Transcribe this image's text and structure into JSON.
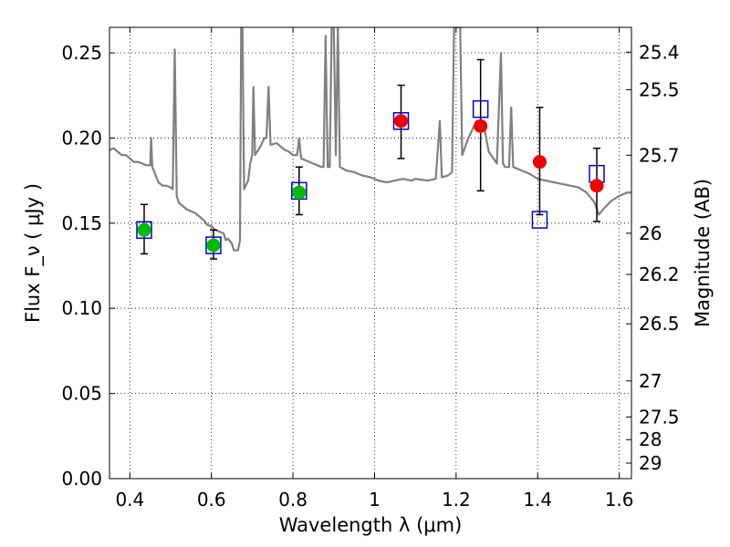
{
  "chart_data": {
    "type": "scatter",
    "title": "",
    "xlabel": "Wavelength  λ (μm)",
    "ylabel": "Flux  F_ν  ( μJy )",
    "y2label": "Magnitude (AB)",
    "xlim": [
      0.35,
      1.63
    ],
    "ylim": [
      0.0,
      0.265
    ],
    "grid": true,
    "x_ticks": [
      0.4,
      0.6,
      0.8,
      1.0,
      1.2,
      1.4,
      1.6
    ],
    "x_tick_labels": [
      "0.4",
      "0.6",
      "0.8",
      "1",
      "1.2",
      "1.4",
      "1.6"
    ],
    "y_ticks": [
      0.0,
      0.05,
      0.1,
      0.15,
      0.2,
      0.25
    ],
    "y_tick_labels": [
      "0.00",
      "0.05",
      "0.10",
      "0.15",
      "0.20",
      "0.25"
    ],
    "y2_ticks": [
      {
        "label": "25.4",
        "flux": 0.2504
      },
      {
        "label": "25.5",
        "flux": 0.2284
      },
      {
        "label": "25.7",
        "flux": 0.1899
      },
      {
        "label": "26",
        "flux": 0.1441
      },
      {
        "label": "26.2",
        "flux": 0.1199
      },
      {
        "label": "26.5",
        "flux": 0.0909
      },
      {
        "label": "27",
        "flux": 0.0574
      },
      {
        "label": "27.5",
        "flux": 0.0362
      },
      {
        "label": "28",
        "flux": 0.0229
      },
      {
        "label": "29",
        "flux": 0.0091
      }
    ],
    "colors": {
      "model": "#808080",
      "square": "#0000cc",
      "green": "#00bb00",
      "red": "#ee0000",
      "errorbar": "#000000"
    },
    "series": [
      {
        "type": "line",
        "points": [
          [
            0.35,
            0.193
          ],
          [
            0.36,
            0.194
          ],
          [
            0.37,
            0.192
          ],
          [
            0.38,
            0.19
          ],
          [
            0.39,
            0.19
          ],
          [
            0.4,
            0.188
          ],
          [
            0.41,
            0.186
          ],
          [
            0.42,
            0.186
          ],
          [
            0.43,
            0.185
          ],
          [
            0.44,
            0.184
          ],
          [
            0.45,
            0.184
          ],
          [
            0.452,
            0.2
          ],
          [
            0.455,
            0.183
          ],
          [
            0.46,
            0.18
          ],
          [
            0.47,
            0.174
          ],
          [
            0.48,
            0.172
          ],
          [
            0.49,
            0.172
          ],
          [
            0.5,
            0.171
          ],
          [
            0.505,
            0.17
          ],
          [
            0.51,
            0.252
          ],
          [
            0.515,
            0.166
          ],
          [
            0.52,
            0.162
          ],
          [
            0.53,
            0.16
          ],
          [
            0.54,
            0.158
          ],
          [
            0.55,
            0.157
          ],
          [
            0.56,
            0.156
          ],
          [
            0.57,
            0.154
          ],
          [
            0.58,
            0.152
          ],
          [
            0.59,
            0.149
          ],
          [
            0.6,
            0.148
          ],
          [
            0.61,
            0.146
          ],
          [
            0.62,
            0.145
          ],
          [
            0.63,
            0.144
          ],
          [
            0.635,
            0.14
          ],
          [
            0.64,
            0.141
          ],
          [
            0.65,
            0.138
          ],
          [
            0.655,
            0.134
          ],
          [
            0.665,
            0.134
          ],
          [
            0.67,
            0.14
          ],
          [
            0.673,
            0.265
          ],
          [
            0.676,
            0.265
          ],
          [
            0.68,
            0.17
          ],
          [
            0.69,
            0.175
          ],
          [
            0.695,
            0.185
          ],
          [
            0.7,
            0.19
          ],
          [
            0.703,
            0.23
          ],
          [
            0.707,
            0.19
          ],
          [
            0.72,
            0.195
          ],
          [
            0.73,
            0.2
          ],
          [
            0.735,
            0.2
          ],
          [
            0.74,
            0.23
          ],
          [
            0.745,
            0.196
          ],
          [
            0.76,
            0.197
          ],
          [
            0.77,
            0.195
          ],
          [
            0.78,
            0.193
          ],
          [
            0.79,
            0.192
          ],
          [
            0.8,
            0.19
          ],
          [
            0.81,
            0.19
          ],
          [
            0.815,
            0.2
          ],
          [
            0.82,
            0.188
          ],
          [
            0.83,
            0.187
          ],
          [
            0.84,
            0.186
          ],
          [
            0.85,
            0.185
          ],
          [
            0.86,
            0.184
          ],
          [
            0.87,
            0.183
          ],
          [
            0.875,
            0.183
          ],
          [
            0.88,
            0.26
          ],
          [
            0.885,
            0.183
          ],
          [
            0.89,
            0.183
          ],
          [
            0.895,
            0.265
          ],
          [
            0.9,
            0.265
          ],
          [
            0.905,
            0.19
          ],
          [
            0.91,
            0.265
          ],
          [
            0.915,
            0.183
          ],
          [
            0.93,
            0.181
          ],
          [
            0.95,
            0.18
          ],
          [
            0.97,
            0.178
          ],
          [
            0.99,
            0.177
          ],
          [
            1.01,
            0.175
          ],
          [
            1.03,
            0.174
          ],
          [
            1.05,
            0.175
          ],
          [
            1.07,
            0.176
          ],
          [
            1.09,
            0.175
          ],
          [
            1.1,
            0.176
          ],
          [
            1.13,
            0.175
          ],
          [
            1.15,
            0.176
          ],
          [
            1.16,
            0.21
          ],
          [
            1.165,
            0.177
          ],
          [
            1.18,
            0.178
          ],
          [
            1.19,
            0.18
          ],
          [
            1.195,
            0.265
          ],
          [
            1.21,
            0.265
          ],
          [
            1.215,
            0.19
          ],
          [
            1.23,
            0.2
          ],
          [
            1.25,
            0.21
          ],
          [
            1.27,
            0.205
          ],
          [
            1.28,
            0.192
          ],
          [
            1.3,
            0.185
          ],
          [
            1.31,
            0.25
          ],
          [
            1.315,
            0.185
          ],
          [
            1.32,
            0.183
          ],
          [
            1.33,
            0.183
          ],
          [
            1.335,
            0.218
          ],
          [
            1.34,
            0.183
          ],
          [
            1.36,
            0.181
          ],
          [
            1.38,
            0.179
          ],
          [
            1.4,
            0.176
          ],
          [
            1.42,
            0.175
          ],
          [
            1.44,
            0.174
          ],
          [
            1.46,
            0.173
          ],
          [
            1.48,
            0.172
          ],
          [
            1.5,
            0.171
          ],
          [
            1.52,
            0.168
          ],
          [
            1.54,
            0.162
          ],
          [
            1.55,
            0.155
          ],
          [
            1.56,
            0.158
          ],
          [
            1.58,
            0.163
          ],
          [
            1.6,
            0.166
          ],
          [
            1.62,
            0.168
          ],
          [
            1.63,
            0.168
          ]
        ]
      },
      {
        "type": "square",
        "points": [
          [
            0.435,
            0.146
          ],
          [
            0.605,
            0.137
          ],
          [
            0.815,
            0.169
          ],
          [
            1.065,
            0.21
          ],
          [
            1.26,
            0.217
          ],
          [
            1.405,
            0.152
          ],
          [
            1.545,
            0.179
          ]
        ]
      },
      {
        "type": "circle",
        "points": [
          [
            0.435,
            0.146,
            0.132,
            0.161,
            "green"
          ],
          [
            0.605,
            0.137,
            0.129,
            0.146,
            "green"
          ],
          [
            0.815,
            0.168,
            0.155,
            0.183,
            "green"
          ],
          [
            1.065,
            0.21,
            0.188,
            0.231,
            "red"
          ],
          [
            1.26,
            0.207,
            0.169,
            0.246,
            "red"
          ],
          [
            1.405,
            0.186,
            0.155,
            0.218,
            "red"
          ],
          [
            1.545,
            0.172,
            0.151,
            0.194,
            "red"
          ]
        ]
      }
    ]
  }
}
